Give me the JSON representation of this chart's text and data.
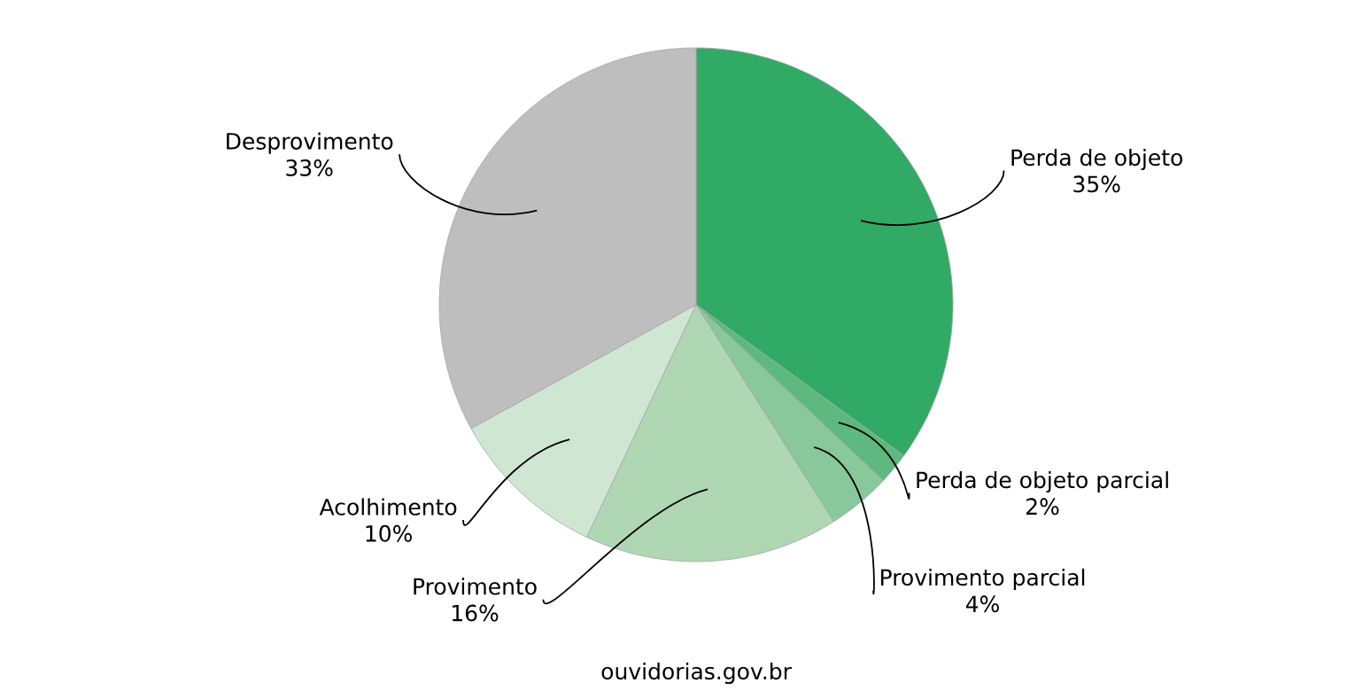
{
  "chart_data": {
    "type": "pie",
    "categories": [
      "Perda de objeto",
      "Perda de objeto parcial",
      "Provimento parcial",
      "Provimento",
      "Acolhimento",
      "Desprovimento"
    ],
    "values": [
      35,
      2,
      4,
      16,
      10,
      33
    ],
    "value_labels": [
      "35%",
      "2%",
      "4%",
      "16%",
      "10%",
      "33%"
    ],
    "colors": [
      "#31aa66",
      "#5db97f",
      "#88c89a",
      "#afd7b3",
      "#cfe6d3",
      "#bebebe"
    ],
    "annotations": [
      "ouvidorias.gov.br"
    ]
  }
}
